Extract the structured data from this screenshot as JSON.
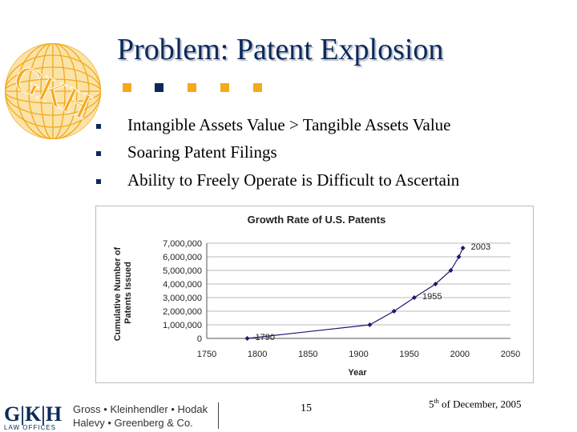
{
  "slide": {
    "title": "Problem: Patent Explosion",
    "title_color": "#0a2a5a",
    "accent_color": "#f5a91c",
    "logo_text": "GKH",
    "bullets": [
      "Intangible Assets Value > Tangible Assets Value",
      "Soaring Patent Filings",
      "Ability to Freely Operate is Difficult to Ascertain"
    ],
    "footer": {
      "logo_letters": "G|K|H",
      "logo_sub": "LAW OFFICES",
      "firm_line1": "Gross • Kleinhendler • Hodak",
      "firm_line2": "Halevy • Greenberg & Co.",
      "page_number": "15",
      "date_day": "5",
      "date_suffix": "th",
      "date_rest": " of December, 2005"
    }
  },
  "chart_data": {
    "type": "line",
    "title": "Growth Rate of U.S. Patents",
    "xlabel": "Year",
    "ylabel": "Cumulative Number of Patents Issued",
    "xlim": [
      1750,
      2050
    ],
    "ylim": [
      0,
      7000000
    ],
    "xticks": [
      "1750",
      "1800",
      "1850",
      "1900",
      "1950",
      "2000",
      "2050"
    ],
    "yticks": [
      "0",
      "1,000,000",
      "2,000,000",
      "3,000,000",
      "4,000,000",
      "5,000,000",
      "6,000,000",
      "7,000,000"
    ],
    "grid": "horizontal",
    "series": [
      {
        "color": "#1a1a6e",
        "x": [
          1790,
          1911,
          1935,
          1955,
          1976,
          1991,
          1999,
          2003
        ],
        "y": [
          0,
          1000000,
          2000000,
          3000000,
          4000000,
          5000000,
          6000000,
          6650000
        ]
      }
    ],
    "annotations": [
      {
        "text": "1790",
        "x": 1790,
        "y": 0
      },
      {
        "text": "1955",
        "x": 1955,
        "y": 3000000
      },
      {
        "text": "2003",
        "x": 2003,
        "y": 6650000
      }
    ]
  }
}
